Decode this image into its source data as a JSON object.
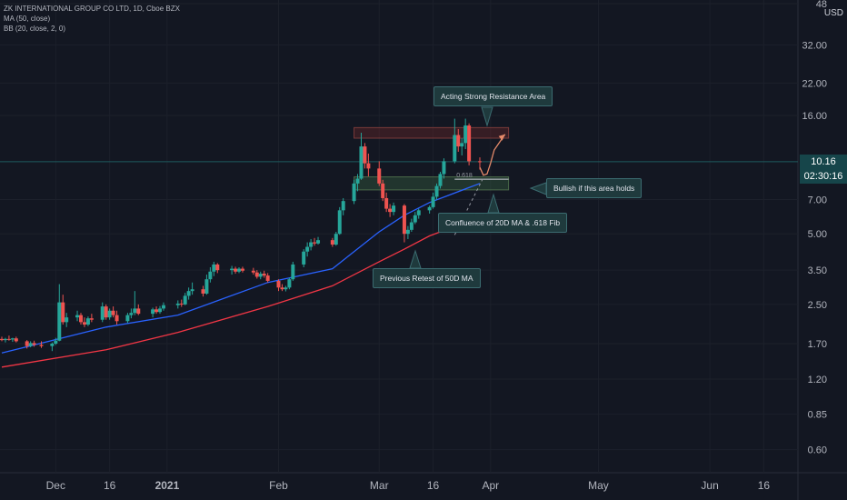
{
  "legend": {
    "symbol": "ZK INTERNATIONAL GROUP CO LTD, 1D, Cboe BZX",
    "ma": "MA (50, close)",
    "bb": "BB (20, close, 2, 0)"
  },
  "currency": "USD",
  "price_tag": {
    "price": "10.16",
    "countdown": "02:30:16"
  },
  "annotations": {
    "resistance": "Acting Strong Resistance Area",
    "bullish": "Bullish if  this area holds",
    "confluence": "Confluence of 20D MA & .618 Fib",
    "retest": "Previous Retest of 50D MA"
  },
  "fib_label": "0.618",
  "colors": {
    "up": "#26a69a",
    "down": "#ef5350",
    "ma20": "#2962ff",
    "ma50": "#f23645",
    "background": "#131722",
    "tag": "#16454a"
  },
  "chart_data": {
    "type": "candlestick",
    "y_scale": "log",
    "y_ticks": [
      "48",
      "32.00",
      "22.00",
      "16.00",
      "7.00",
      "5.00",
      "3.50",
      "2.50",
      "1.70",
      "1.20",
      "0.85",
      "0.60"
    ],
    "x_ticks": [
      "Dec",
      "16",
      "2021",
      "Feb",
      "Mar",
      "16",
      "Apr",
      "May",
      "Jun",
      "16"
    ],
    "x_range": [
      "2020-11-16",
      "2021-06-25"
    ],
    "y_range": [
      0.5,
      48
    ],
    "last_price": 10.16,
    "candles": [
      {
        "date": "2020-11-16",
        "o": 1.78,
        "h": 1.82,
        "l": 1.74,
        "c": 1.76
      },
      {
        "date": "2020-11-17",
        "o": 1.76,
        "h": 1.8,
        "l": 1.72,
        "c": 1.78
      },
      {
        "date": "2020-11-18",
        "o": 1.78,
        "h": 1.84,
        "l": 1.75,
        "c": 1.77
      },
      {
        "date": "2020-11-19",
        "o": 1.77,
        "h": 1.8,
        "l": 1.73,
        "c": 1.79
      },
      {
        "date": "2020-11-20",
        "o": 1.79,
        "h": 1.82,
        "l": 1.72,
        "c": 1.74
      },
      {
        "date": "2020-11-23",
        "o": 1.74,
        "h": 1.76,
        "l": 1.62,
        "c": 1.66
      },
      {
        "date": "2020-11-24",
        "o": 1.66,
        "h": 1.74,
        "l": 1.64,
        "c": 1.71
      },
      {
        "date": "2020-11-25",
        "o": 1.71,
        "h": 1.75,
        "l": 1.65,
        "c": 1.68
      },
      {
        "date": "2020-11-27",
        "o": 1.68,
        "h": 1.74,
        "l": 1.63,
        "c": 1.66
      },
      {
        "date": "2020-11-30",
        "o": 1.66,
        "h": 1.72,
        "l": 1.58,
        "c": 1.7
      },
      {
        "date": "2020-12-01",
        "o": 1.7,
        "h": 1.8,
        "l": 1.68,
        "c": 1.75
      },
      {
        "date": "2020-12-02",
        "o": 1.75,
        "h": 3.05,
        "l": 1.74,
        "c": 2.55
      },
      {
        "date": "2020-12-03",
        "o": 2.55,
        "h": 2.75,
        "l": 2.05,
        "c": 2.1
      },
      {
        "date": "2020-12-04",
        "o": 2.1,
        "h": 2.3,
        "l": 2.0,
        "c": 2.2
      },
      {
        "date": "2020-12-07",
        "o": 2.2,
        "h": 2.35,
        "l": 2.12,
        "c": 2.25
      },
      {
        "date": "2020-12-08",
        "o": 2.25,
        "h": 2.3,
        "l": 2.05,
        "c": 2.1
      },
      {
        "date": "2020-12-09",
        "o": 2.1,
        "h": 2.2,
        "l": 2.0,
        "c": 2.05
      },
      {
        "date": "2020-12-10",
        "o": 2.05,
        "h": 2.22,
        "l": 2.02,
        "c": 2.18
      },
      {
        "date": "2020-12-11",
        "o": 2.18,
        "h": 2.28,
        "l": 2.1,
        "c": 2.15
      },
      {
        "date": "2020-12-14",
        "o": 2.15,
        "h": 2.55,
        "l": 2.1,
        "c": 2.45
      },
      {
        "date": "2020-12-15",
        "o": 2.45,
        "h": 2.5,
        "l": 2.15,
        "c": 2.2
      },
      {
        "date": "2020-12-16",
        "o": 2.2,
        "h": 2.4,
        "l": 2.15,
        "c": 2.35
      },
      {
        "date": "2020-12-17",
        "o": 2.35,
        "h": 2.45,
        "l": 2.2,
        "c": 2.25
      },
      {
        "date": "2020-12-18",
        "o": 2.25,
        "h": 2.35,
        "l": 2.05,
        "c": 2.12
      },
      {
        "date": "2020-12-21",
        "o": 2.12,
        "h": 2.3,
        "l": 2.08,
        "c": 2.25
      },
      {
        "date": "2020-12-22",
        "o": 2.25,
        "h": 2.4,
        "l": 2.18,
        "c": 2.3
      },
      {
        "date": "2020-12-23",
        "o": 2.3,
        "h": 2.85,
        "l": 2.25,
        "c": 2.4
      },
      {
        "date": "2020-12-24",
        "o": 2.4,
        "h": 2.5,
        "l": 2.25,
        "c": 2.28
      },
      {
        "date": "2020-12-28",
        "o": 2.28,
        "h": 2.42,
        "l": 2.2,
        "c": 2.38
      },
      {
        "date": "2020-12-29",
        "o": 2.38,
        "h": 2.45,
        "l": 2.28,
        "c": 2.32
      },
      {
        "date": "2020-12-30",
        "o": 2.32,
        "h": 2.46,
        "l": 2.28,
        "c": 2.4
      },
      {
        "date": "2020-12-31",
        "o": 2.4,
        "h": 2.55,
        "l": 2.35,
        "c": 2.48
      },
      {
        "date": "2021-01-04",
        "o": 2.48,
        "h": 2.6,
        "l": 2.4,
        "c": 2.52
      },
      {
        "date": "2021-01-05",
        "o": 2.52,
        "h": 2.62,
        "l": 2.44,
        "c": 2.5
      },
      {
        "date": "2021-01-06",
        "o": 2.5,
        "h": 2.8,
        "l": 2.48,
        "c": 2.72
      },
      {
        "date": "2021-01-07",
        "o": 2.72,
        "h": 2.95,
        "l": 2.62,
        "c": 2.85
      },
      {
        "date": "2021-01-08",
        "o": 2.85,
        "h": 3.1,
        "l": 2.75,
        "c": 2.9
      },
      {
        "date": "2021-01-11",
        "o": 2.9,
        "h": 3.0,
        "l": 2.7,
        "c": 2.78
      },
      {
        "date": "2021-01-12",
        "o": 2.78,
        "h": 3.35,
        "l": 2.75,
        "c": 3.2
      },
      {
        "date": "2021-01-13",
        "o": 3.2,
        "h": 3.6,
        "l": 3.1,
        "c": 3.45
      },
      {
        "date": "2021-01-14",
        "o": 3.45,
        "h": 3.8,
        "l": 3.3,
        "c": 3.7
      },
      {
        "date": "2021-01-15",
        "o": 3.7,
        "h": 3.75,
        "l": 3.4,
        "c": 3.5
      },
      {
        "date": "2021-01-19",
        "o": 3.5,
        "h": 3.65,
        "l": 3.35,
        "c": 3.55
      },
      {
        "date": "2021-01-20",
        "o": 3.55,
        "h": 3.62,
        "l": 3.38,
        "c": 3.45
      },
      {
        "date": "2021-01-21",
        "o": 3.45,
        "h": 3.6,
        "l": 3.4,
        "c": 3.55
      },
      {
        "date": "2021-01-22",
        "o": 3.55,
        "h": 3.62,
        "l": 3.42,
        "c": 3.48
      },
      {
        "date": "2021-01-25",
        "o": 3.48,
        "h": 3.58,
        "l": 3.35,
        "c": 3.42
      },
      {
        "date": "2021-01-26",
        "o": 3.42,
        "h": 3.5,
        "l": 3.22,
        "c": 3.28
      },
      {
        "date": "2021-01-27",
        "o": 3.28,
        "h": 3.45,
        "l": 3.2,
        "c": 3.38
      },
      {
        "date": "2021-01-28",
        "o": 3.38,
        "h": 3.48,
        "l": 3.25,
        "c": 3.32
      },
      {
        "date": "2021-01-29",
        "o": 3.32,
        "h": 3.4,
        "l": 3.1,
        "c": 3.15
      },
      {
        "date": "2021-02-01",
        "o": 3.15,
        "h": 3.2,
        "l": 2.85,
        "c": 2.95
      },
      {
        "date": "2021-02-02",
        "o": 2.95,
        "h": 3.05,
        "l": 2.85,
        "c": 2.9
      },
      {
        "date": "2021-02-03",
        "o": 2.9,
        "h": 3.0,
        "l": 2.84,
        "c": 2.95
      },
      {
        "date": "2021-02-04",
        "o": 2.95,
        "h": 3.25,
        "l": 2.9,
        "c": 3.2
      },
      {
        "date": "2021-02-05",
        "o": 3.2,
        "h": 3.8,
        "l": 3.15,
        "c": 3.7
      },
      {
        "date": "2021-02-08",
        "o": 3.7,
        "h": 4.3,
        "l": 3.6,
        "c": 4.2
      },
      {
        "date": "2021-02-09",
        "o": 4.2,
        "h": 4.6,
        "l": 4.0,
        "c": 4.4
      },
      {
        "date": "2021-02-10",
        "o": 4.4,
        "h": 4.75,
        "l": 4.25,
        "c": 4.6
      },
      {
        "date": "2021-02-11",
        "o": 4.6,
        "h": 4.8,
        "l": 4.45,
        "c": 4.55
      },
      {
        "date": "2021-02-12",
        "o": 4.55,
        "h": 4.85,
        "l": 4.5,
        "c": 4.7
      },
      {
        "date": "2021-02-16",
        "o": 4.7,
        "h": 4.8,
        "l": 4.4,
        "c": 4.5
      },
      {
        "date": "2021-02-17",
        "o": 4.5,
        "h": 5.1,
        "l": 4.45,
        "c": 5.0
      },
      {
        "date": "2021-02-18",
        "o": 5.0,
        "h": 6.5,
        "l": 4.95,
        "c": 6.3
      },
      {
        "date": "2021-02-19",
        "o": 6.3,
        "h": 7.1,
        "l": 6.0,
        "c": 6.9
      },
      {
        "date": "2021-02-22",
        "o": 6.9,
        "h": 8.5,
        "l": 6.7,
        "c": 8.2
      },
      {
        "date": "2021-02-23",
        "o": 8.2,
        "h": 9.0,
        "l": 7.6,
        "c": 8.6
      },
      {
        "date": "2021-02-24",
        "o": 8.6,
        "h": 13.5,
        "l": 8.5,
        "c": 11.8
      },
      {
        "date": "2021-02-25",
        "o": 11.8,
        "h": 12.2,
        "l": 9.5,
        "c": 10.0
      },
      {
        "date": "2021-02-26",
        "o": 10.0,
        "h": 11.0,
        "l": 8.8,
        "c": 9.5
      },
      {
        "date": "2021-03-01",
        "o": 9.5,
        "h": 10.2,
        "l": 8.0,
        "c": 8.2
      },
      {
        "date": "2021-03-02",
        "o": 8.2,
        "h": 8.5,
        "l": 6.9,
        "c": 7.1
      },
      {
        "date": "2021-03-03",
        "o": 7.1,
        "h": 7.5,
        "l": 6.2,
        "c": 6.4
      },
      {
        "date": "2021-03-04",
        "o": 6.4,
        "h": 6.7,
        "l": 5.9,
        "c": 6.2
      },
      {
        "date": "2021-03-05",
        "o": 6.2,
        "h": 6.8,
        "l": 6.0,
        "c": 6.6
      },
      {
        "date": "2021-03-08",
        "o": 6.6,
        "h": 6.7,
        "l": 4.6,
        "c": 5.0
      },
      {
        "date": "2021-03-09",
        "o": 5.0,
        "h": 5.4,
        "l": 4.75,
        "c": 5.2
      },
      {
        "date": "2021-03-10",
        "o": 5.2,
        "h": 5.8,
        "l": 5.1,
        "c": 5.6
      },
      {
        "date": "2021-03-11",
        "o": 5.6,
        "h": 6.2,
        "l": 5.5,
        "c": 6.0
      },
      {
        "date": "2021-03-12",
        "o": 6.0,
        "h": 6.4,
        "l": 5.8,
        "c": 6.3
      },
      {
        "date": "2021-03-15",
        "o": 6.3,
        "h": 6.6,
        "l": 6.1,
        "c": 6.5
      },
      {
        "date": "2021-03-16",
        "o": 6.5,
        "h": 7.5,
        "l": 6.4,
        "c": 7.2
      },
      {
        "date": "2021-03-17",
        "o": 7.2,
        "h": 8.2,
        "l": 7.0,
        "c": 8.0
      },
      {
        "date": "2021-03-18",
        "o": 8.0,
        "h": 9.2,
        "l": 7.8,
        "c": 9.0
      },
      {
        "date": "2021-03-19",
        "o": 9.0,
        "h": 10.5,
        "l": 8.6,
        "c": 10.2
      },
      {
        "date": "2021-03-22",
        "o": 10.2,
        "h": 15.5,
        "l": 10.0,
        "c": 13.2
      },
      {
        "date": "2021-03-23",
        "o": 13.2,
        "h": 14.0,
        "l": 11.2,
        "c": 11.8
      },
      {
        "date": "2021-03-24",
        "o": 11.8,
        "h": 12.8,
        "l": 10.8,
        "c": 12.2
      },
      {
        "date": "2021-03-25",
        "o": 12.2,
        "h": 15.5,
        "l": 11.5,
        "c": 14.5
      },
      {
        "date": "2021-03-26",
        "o": 14.5,
        "h": 14.8,
        "l": 9.8,
        "c": 10.2
      },
      {
        "date": "2021-03-29",
        "o": 10.2,
        "h": 10.6,
        "l": 9.4,
        "c": 10.16
      }
    ],
    "series": [
      {
        "name": "MA (50, close)",
        "values": [
          {
            "date": "2020-11-16",
            "y": 1.35
          },
          {
            "date": "2020-12-15",
            "y": 1.6
          },
          {
            "date": "2021-01-04",
            "y": 1.9
          },
          {
            "date": "2021-01-29",
            "y": 2.45
          },
          {
            "date": "2021-02-16",
            "y": 3.0
          },
          {
            "date": "2021-03-01",
            "y": 3.8
          },
          {
            "date": "2021-03-08",
            "y": 4.3
          },
          {
            "date": "2021-03-15",
            "y": 4.9
          },
          {
            "date": "2021-03-29",
            "y": 5.9
          }
        ]
      },
      {
        "name": "BB (20, close, 2, 0)",
        "values": [
          {
            "date": "2020-11-16",
            "y": 1.55
          },
          {
            "date": "2020-12-15",
            "y": 2.0
          },
          {
            "date": "2021-01-04",
            "y": 2.25
          },
          {
            "date": "2021-01-29",
            "y": 3.1
          },
          {
            "date": "2021-02-16",
            "y": 3.55
          },
          {
            "date": "2021-03-01",
            "y": 5.1
          },
          {
            "date": "2021-03-08",
            "y": 6.0
          },
          {
            "date": "2021-03-15",
            "y": 6.8
          },
          {
            "date": "2021-03-29",
            "y": 8.2
          }
        ]
      }
    ],
    "zones": [
      {
        "name": "resistance",
        "from": "2021-02-22",
        "to": "2021-04-06",
        "low": 12.8,
        "high": 14.2
      },
      {
        "name": "support",
        "from": "2021-02-22",
        "to": "2021-04-06",
        "low": 7.7,
        "high": 8.75
      }
    ],
    "fib_level": 8.55,
    "projection": [
      {
        "date": "2021-03-29",
        "y": 9.6
      },
      {
        "date": "2021-03-30",
        "y": 8.9
      },
      {
        "date": "2021-03-31",
        "y": 9.0
      },
      {
        "date": "2021-04-01",
        "y": 10.0
      },
      {
        "date": "2021-04-02",
        "y": 11.4
      },
      {
        "date": "2021-04-05",
        "y": 13.3
      }
    ],
    "dashed_guide": [
      {
        "date": "2021-03-22",
        "y": 4.95
      },
      {
        "date": "2021-03-30",
        "y": 8.7
      }
    ]
  }
}
